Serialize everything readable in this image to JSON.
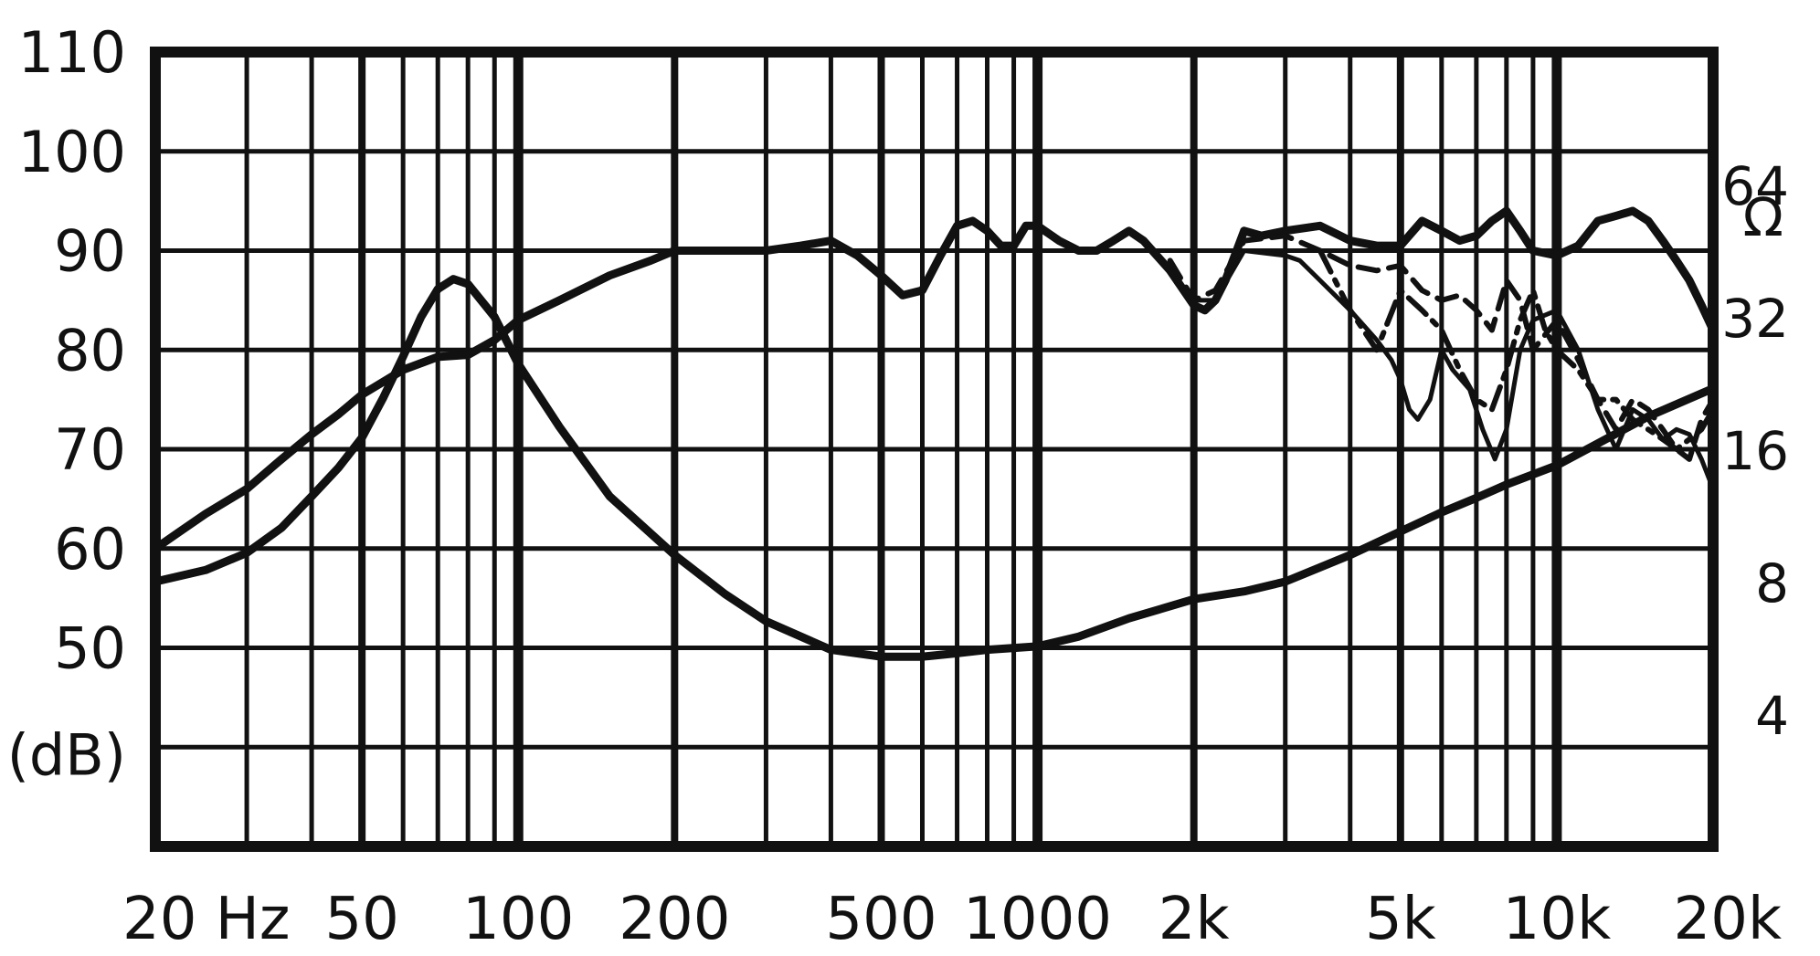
{
  "chart_data": {
    "type": "line",
    "title": "",
    "xlabel": "",
    "ylabel": "(dB)",
    "y2label": "Ω",
    "x_scale": "log",
    "xlim": [
      20,
      20000
    ],
    "ylim": [
      30,
      110
    ],
    "y2_scale": "log2",
    "y2lim": [
      2,
      128
    ],
    "grid": true,
    "x_tick_labels": [
      {
        "value": 20,
        "label": "20 Hz"
      },
      {
        "value": 50,
        "label": "50"
      },
      {
        "value": 100,
        "label": "100"
      },
      {
        "value": 200,
        "label": "200"
      },
      {
        "value": 500,
        "label": "500"
      },
      {
        "value": 1000,
        "label": "1000"
      },
      {
        "value": 2000,
        "label": "2k"
      },
      {
        "value": 5000,
        "label": "5k"
      },
      {
        "value": 10000,
        "label": "10k"
      },
      {
        "value": 20000,
        "label": "20k"
      }
    ],
    "y_tick_labels": [
      {
        "value": 110,
        "label": "110"
      },
      {
        "value": 100,
        "label": "100"
      },
      {
        "value": 90,
        "label": "90"
      },
      {
        "value": 80,
        "label": "80"
      },
      {
        "value": 70,
        "label": "70"
      },
      {
        "value": 60,
        "label": "60"
      },
      {
        "value": 50,
        "label": "50"
      }
    ],
    "y2_tick_labels": [
      {
        "value": 64,
        "label": "64"
      },
      {
        "value": 32,
        "label": "32"
      },
      {
        "value": 16,
        "label": "16"
      },
      {
        "value": 8,
        "label": "8"
      },
      {
        "value": 4,
        "label": "4"
      }
    ],
    "series": [
      {
        "axis": "left",
        "style": "solid-thick",
        "points": [
          [
            20,
            60
          ],
          [
            22,
            61.5
          ],
          [
            25,
            63.5
          ],
          [
            30,
            66
          ],
          [
            35,
            69
          ],
          [
            40,
            71.5
          ],
          [
            45,
            73.5
          ],
          [
            50,
            75.5
          ],
          [
            60,
            78
          ],
          [
            70,
            79.3
          ],
          [
            80,
            79.5
          ],
          [
            90,
            81
          ],
          [
            100,
            83
          ],
          [
            120,
            85
          ],
          [
            150,
            87.5
          ],
          [
            180,
            89
          ],
          [
            200,
            90
          ],
          [
            250,
            90
          ],
          [
            300,
            90
          ],
          [
            350,
            90.5
          ],
          [
            400,
            91
          ],
          [
            450,
            89.5
          ],
          [
            500,
            87.5
          ],
          [
            550,
            85.5
          ],
          [
            600,
            86
          ],
          [
            650,
            89.5
          ],
          [
            700,
            92.5
          ],
          [
            750,
            93
          ],
          [
            800,
            92
          ],
          [
            850,
            90.5
          ],
          [
            900,
            90.5
          ],
          [
            950,
            92.5
          ],
          [
            1000,
            92.5
          ],
          [
            1100,
            91
          ],
          [
            1200,
            90
          ],
          [
            1300,
            90
          ],
          [
            1400,
            91
          ],
          [
            1500,
            92
          ],
          [
            1600,
            91
          ],
          [
            1800,
            88
          ],
          [
            2000,
            84.5
          ],
          [
            2100,
            84
          ],
          [
            2200,
            85
          ],
          [
            2300,
            87
          ],
          [
            2500,
            92
          ],
          [
            2700,
            91.5
          ],
          [
            3000,
            92
          ],
          [
            3500,
            92.5
          ],
          [
            4000,
            91
          ],
          [
            4500,
            90.5
          ],
          [
            5000,
            90.5
          ],
          [
            5500,
            93
          ],
          [
            6000,
            92
          ],
          [
            6500,
            91
          ],
          [
            7000,
            91.5
          ],
          [
            7500,
            93
          ],
          [
            8000,
            94
          ],
          [
            8500,
            92
          ],
          [
            9000,
            90
          ],
          [
            10000,
            89.5
          ],
          [
            11000,
            90.5
          ],
          [
            12000,
            93
          ],
          [
            13000,
            93.5
          ],
          [
            14000,
            94
          ],
          [
            15000,
            93
          ],
          [
            16000,
            91
          ],
          [
            17000,
            89
          ],
          [
            18000,
            87
          ],
          [
            19000,
            84.5
          ],
          [
            20000,
            82
          ]
        ]
      },
      {
        "axis": "left",
        "style": "solid-thin",
        "points": [
          [
            1800,
            88
          ],
          [
            2000,
            85
          ],
          [
            2200,
            85
          ],
          [
            2500,
            90
          ],
          [
            3000,
            89.5
          ],
          [
            3200,
            89
          ],
          [
            3500,
            87
          ],
          [
            4000,
            84
          ],
          [
            4500,
            81
          ],
          [
            4800,
            79
          ],
          [
            5000,
            77
          ],
          [
            5200,
            74
          ],
          [
            5400,
            73
          ],
          [
            5700,
            75
          ],
          [
            6000,
            80
          ],
          [
            6300,
            78
          ],
          [
            6800,
            76
          ],
          [
            7200,
            72
          ],
          [
            7600,
            69
          ],
          [
            8000,
            72
          ],
          [
            8500,
            80
          ],
          [
            9000,
            83
          ],
          [
            10000,
            84
          ],
          [
            11000,
            80
          ],
          [
            12000,
            74
          ],
          [
            13000,
            70
          ],
          [
            14000,
            74
          ],
          [
            15000,
            73
          ],
          [
            16000,
            71
          ],
          [
            17000,
            72
          ],
          [
            18000,
            71.5
          ],
          [
            19000,
            69
          ],
          [
            20000,
            66
          ]
        ]
      },
      {
        "axis": "left",
        "style": "dashed",
        "points": [
          [
            1800,
            89
          ],
          [
            2000,
            85
          ],
          [
            2200,
            86
          ],
          [
            2500,
            91
          ],
          [
            3000,
            91.5
          ],
          [
            3500,
            90
          ],
          [
            4000,
            88.5
          ],
          [
            4500,
            88
          ],
          [
            5000,
            88.5
          ],
          [
            5500,
            86
          ],
          [
            6000,
            85
          ],
          [
            6500,
            85.5
          ],
          [
            7000,
            84
          ],
          [
            7500,
            82
          ],
          [
            8000,
            87
          ],
          [
            8500,
            85
          ],
          [
            9000,
            80
          ],
          [
            10000,
            83
          ],
          [
            11000,
            79
          ],
          [
            12000,
            75
          ],
          [
            13000,
            72
          ],
          [
            14000,
            75
          ],
          [
            15000,
            74
          ],
          [
            16000,
            72
          ],
          [
            17000,
            70
          ],
          [
            18000,
            69
          ],
          [
            19000,
            73
          ],
          [
            20000,
            75
          ]
        ]
      },
      {
        "axis": "left",
        "style": "dash-dot",
        "points": [
          [
            3500,
            90
          ],
          [
            4000,
            84
          ],
          [
            4500,
            80
          ],
          [
            5000,
            86
          ],
          [
            5500,
            84
          ],
          [
            6000,
            82
          ],
          [
            6500,
            78
          ],
          [
            7000,
            75
          ],
          [
            7500,
            74
          ],
          [
            8000,
            78
          ],
          [
            8500,
            83
          ],
          [
            9000,
            86
          ],
          [
            9500,
            82
          ],
          [
            10000,
            80
          ],
          [
            11000,
            78
          ],
          [
            12000,
            75
          ],
          [
            13000,
            75
          ],
          [
            14000,
            73
          ],
          [
            15000,
            72
          ],
          [
            16000,
            71
          ],
          [
            17000,
            70
          ],
          [
            18000,
            71
          ],
          [
            19000,
            72
          ],
          [
            20000,
            74
          ]
        ]
      },
      {
        "axis": "right",
        "style": "solid-thick",
        "points": [
          [
            20,
            8
          ],
          [
            25,
            8.5
          ],
          [
            30,
            9.3
          ],
          [
            35,
            10.6
          ],
          [
            40,
            12.5
          ],
          [
            45,
            14.5
          ],
          [
            50,
            17
          ],
          [
            55,
            21
          ],
          [
            60,
            26
          ],
          [
            65,
            32
          ],
          [
            70,
            37
          ],
          [
            75,
            39
          ],
          [
            80,
            38
          ],
          [
            90,
            32
          ],
          [
            100,
            25
          ],
          [
            120,
            18
          ],
          [
            150,
            12.5
          ],
          [
            200,
            9.2
          ],
          [
            250,
            7.5
          ],
          [
            300,
            6.5
          ],
          [
            400,
            5.6
          ],
          [
            500,
            5.4
          ],
          [
            600,
            5.4
          ],
          [
            700,
            5.5
          ],
          [
            800,
            5.6
          ],
          [
            1000,
            5.7
          ],
          [
            1200,
            6
          ],
          [
            1500,
            6.6
          ],
          [
            2000,
            7.3
          ],
          [
            2500,
            7.6
          ],
          [
            3000,
            8
          ],
          [
            4000,
            9.2
          ],
          [
            5000,
            10.4
          ],
          [
            6000,
            11.5
          ],
          [
            7000,
            12.4
          ],
          [
            8000,
            13.3
          ],
          [
            10000,
            14.7
          ],
          [
            12000,
            16.5
          ],
          [
            15000,
            19
          ],
          [
            20000,
            22
          ]
        ]
      }
    ]
  }
}
